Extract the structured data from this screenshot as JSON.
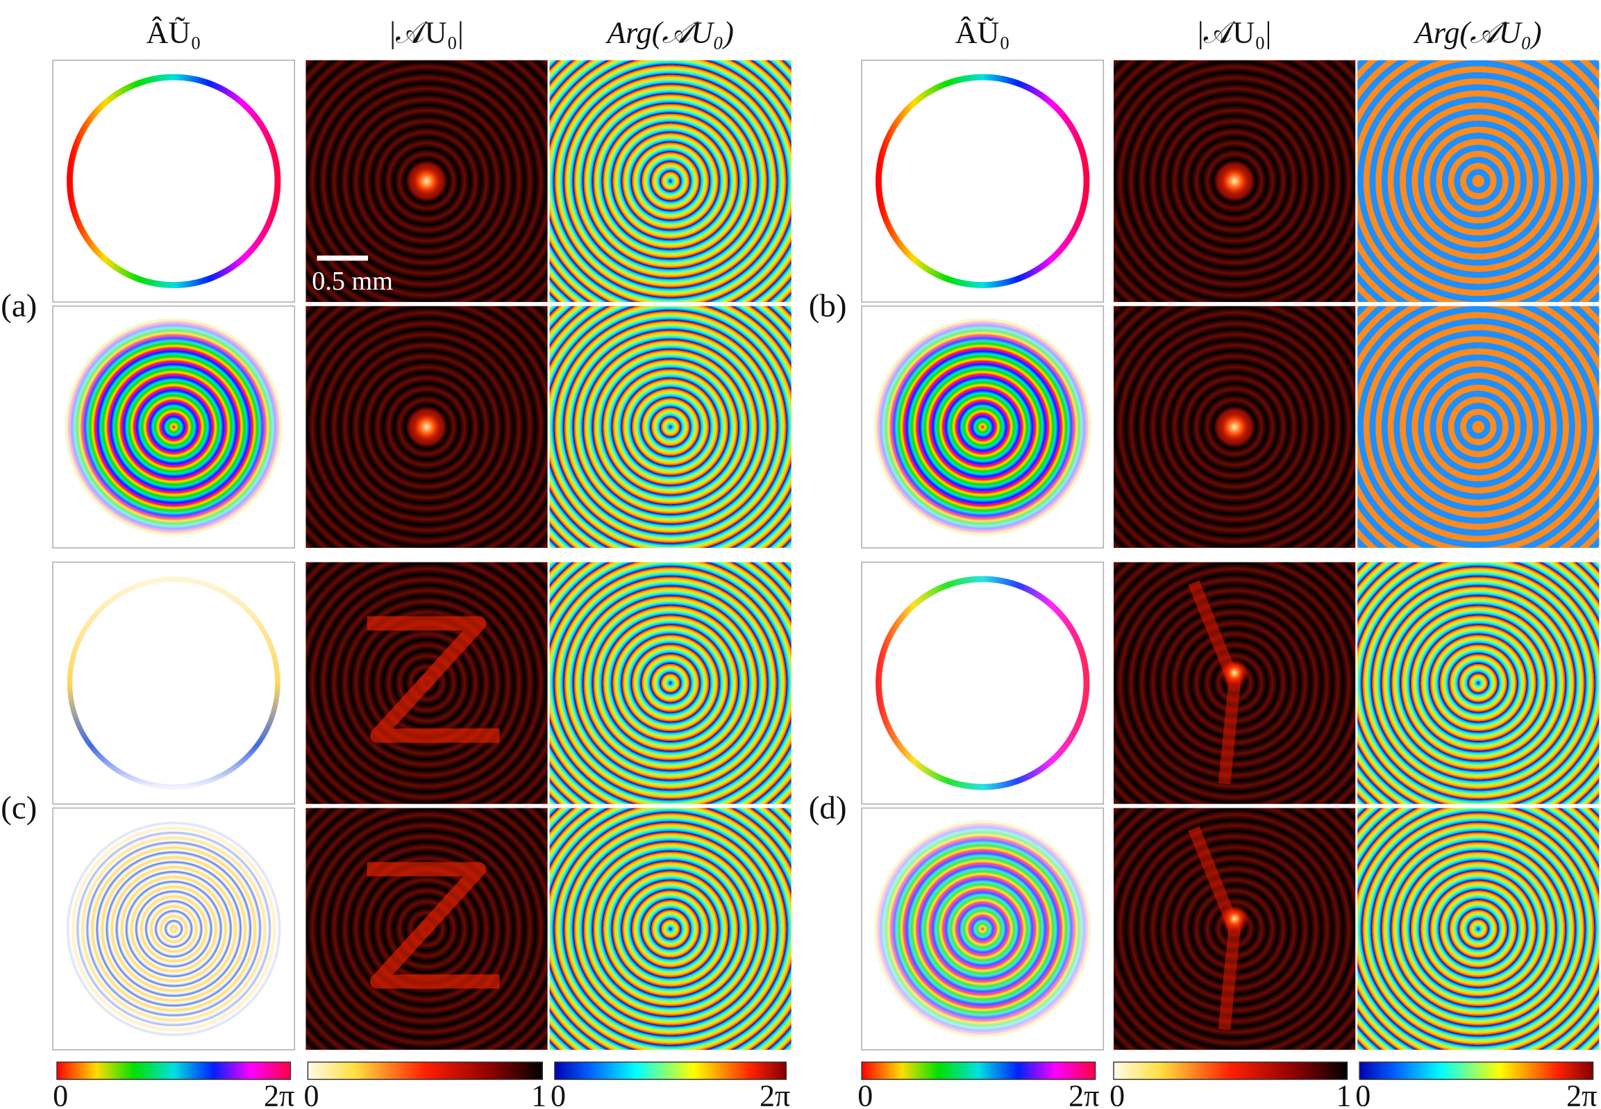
{
  "headers": [
    "ÂŨ₀",
    "|𝒜U₀|",
    "Arg(𝒜U₀)",
    "ÂŨ₀",
    "|𝒜U₀|",
    "Arg(𝒜U₀)"
  ],
  "panel_labels": [
    "(a)",
    "(b)",
    "(c)",
    "(d)"
  ],
  "scale_bar": "0.5 mm",
  "colorbars": [
    {
      "min": "0",
      "max": "2π"
    },
    {
      "min": "0",
      "max": "1"
    },
    {
      "min": "0",
      "max": "2π"
    },
    {
      "min": "0",
      "max": "2π"
    },
    {
      "min": "0",
      "max": "1"
    },
    {
      "min": "0",
      "max": "2π"
    }
  ]
}
